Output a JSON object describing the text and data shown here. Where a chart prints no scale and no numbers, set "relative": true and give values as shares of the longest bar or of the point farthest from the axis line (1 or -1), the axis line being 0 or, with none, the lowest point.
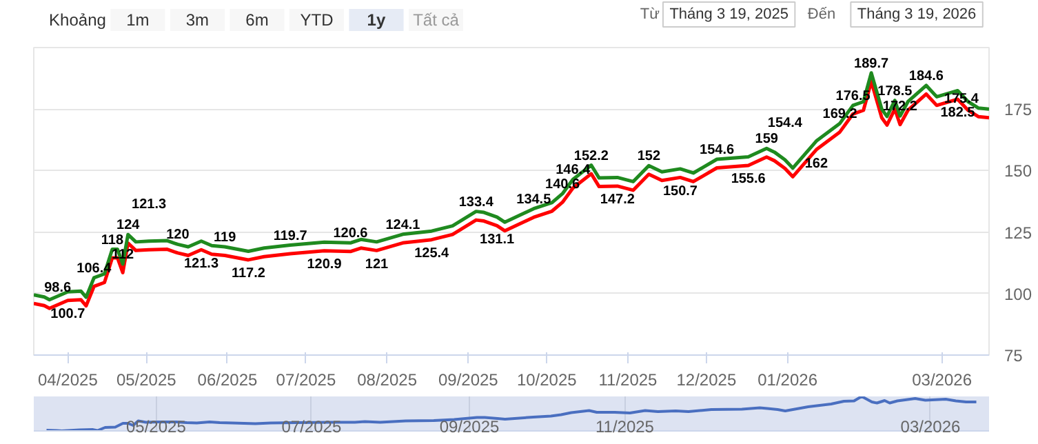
{
  "chart_data": [
    {
      "type": "line",
      "annotations": [
        "Khoảng",
        "1m",
        "3m",
        "6m",
        "YTD",
        "1y",
        "Tất cả",
        "Từ",
        "Tháng 3 19, 2025",
        "Đến",
        "Tháng 3 19, 2026"
      ],
      "x": [
        "2025-03-19",
        "2025-03-23",
        "2025-03-25",
        "2025-04-01",
        "2025-04-06",
        "2025-04-08",
        "2025-04-11",
        "2025-04-15",
        "2025-04-18",
        "2025-04-20",
        "2025-04-22",
        "2025-04-24",
        "2025-04-27",
        "2025-05-02",
        "2025-05-09",
        "2025-05-13",
        "2025-05-17",
        "2025-05-22",
        "2025-05-26",
        "2025-05-31",
        "2025-06-09",
        "2025-06-15",
        "2025-06-25",
        "2025-07-08",
        "2025-07-18",
        "2025-07-22",
        "2025-07-28",
        "2025-08-07",
        "2025-08-18",
        "2025-08-26",
        "2025-09-04",
        "2025-09-07",
        "2025-09-12",
        "2025-09-15",
        "2025-09-26",
        "2025-10-03",
        "2025-10-07",
        "2025-10-11",
        "2025-10-18",
        "2025-10-21",
        "2025-10-28",
        "2025-11-03",
        "2025-11-09",
        "2025-11-14",
        "2025-11-21",
        "2025-11-26",
        "2025-12-05",
        "2025-12-17",
        "2025-12-24",
        "2025-12-27",
        "2025-12-31",
        "2026-01-03",
        "2026-01-12",
        "2026-01-21",
        "2026-01-26",
        "2026-01-30",
        "2026-02-02",
        "2026-02-06",
        "2026-02-08",
        "2026-02-11",
        "2026-02-13",
        "2026-02-16",
        "2026-02-23",
        "2026-02-27",
        "2026-03-07",
        "2026-03-11",
        "2026-03-15",
        "2026-03-19"
      ],
      "series": [
        {
          "color": "#ff0000",
          "values": [
            96,
            95.1,
            94,
            97.2,
            97.5,
            95,
            102.9,
            104.5,
            114.5,
            114.5,
            108.5,
            120.5,
            117.5,
            117.8,
            118,
            116.5,
            115.5,
            117.8,
            116,
            115.5,
            113.7,
            115,
            116.2,
            117.4,
            117.1,
            118.5,
            117.5,
            120.6,
            121.9,
            124,
            129.9,
            129.5,
            127.6,
            125.5,
            131,
            133.5,
            137.1,
            142.9,
            148.7,
            143.5,
            143.7,
            142,
            148.5,
            146,
            147.2,
            145.5,
            151.1,
            152.1,
            155.5,
            154,
            150.9,
            147.5,
            158.5,
            165.7,
            173,
            174.5,
            186.2,
            171.5,
            168.5,
            175,
            168.7,
            174.5,
            181.1,
            176.5,
            179,
            174.5,
            171.9,
            171.5
          ]
        },
        {
          "color": "#1f8a1f",
          "values": [
            99.5,
            98.6,
            97.5,
            100.7,
            101,
            98.5,
            106.4,
            108,
            118,
            118,
            112,
            124,
            121,
            121.3,
            121.5,
            120,
            119,
            121.3,
            119.5,
            119,
            117.2,
            118.5,
            119.7,
            120.9,
            120.6,
            122,
            121,
            124.1,
            125.4,
            127.5,
            133.4,
            133,
            131.1,
            129,
            134.5,
            137,
            140.6,
            146.4,
            152.2,
            147,
            147.2,
            145.5,
            152,
            149.5,
            150.7,
            149,
            154.6,
            155.6,
            159,
            157.5,
            154.4,
            151,
            162,
            169.2,
            176.5,
            178,
            189.7,
            175,
            172,
            178.5,
            172.2,
            178,
            184.6,
            180,
            182.5,
            178,
            175.4,
            175
          ],
          "value_labels": [
            null,
            "98.6",
            null,
            "100.7",
            null,
            null,
            "106.4",
            null,
            "118",
            null,
            "112",
            "124",
            null,
            "121.3",
            null,
            "120",
            null,
            "121.3",
            null,
            "119",
            "117.2",
            null,
            "119.7",
            "120.9",
            "120.6",
            null,
            "121",
            "124.1",
            "125.4",
            null,
            "133.4",
            null,
            "131.1",
            null,
            "134.5",
            null,
            "140.6",
            "146.4",
            "152.2",
            null,
            "147.2",
            null,
            "152",
            null,
            "150.7",
            null,
            "154.6",
            "155.6",
            "159",
            null,
            "154.4",
            null,
            "162",
            "169.2",
            "176.5",
            null,
            "189.7",
            null,
            null,
            "178.5",
            "172.2",
            null,
            "184.6",
            null,
            "182.5",
            null,
            "175.4",
            null
          ]
        }
      ],
      "xlim": [
        "2025-03-19",
        "2026-03-19"
      ],
      "xticks": [
        {
          "value": "2025-04-01",
          "label": "04/2025"
        },
        {
          "value": "2025-05-01",
          "label": "05/2025"
        },
        {
          "value": "2025-06-01",
          "label": "06/2025"
        },
        {
          "value": "2025-07-01",
          "label": "07/2025"
        },
        {
          "value": "2025-08-01",
          "label": "08/2025"
        },
        {
          "value": "2025-09-01",
          "label": "09/2025"
        },
        {
          "value": "2025-10-01",
          "label": "10/2025"
        },
        {
          "value": "2025-11-01",
          "label": "11/2025"
        },
        {
          "value": "2025-12-01",
          "label": "12/2025"
        },
        {
          "value": "2026-01-01",
          "label": "01/2026"
        },
        {
          "value": "2026-03-01",
          "label": "03/2026"
        }
      ],
      "ylim": [
        75,
        200
      ],
      "yticks": [
        75,
        100,
        125,
        150,
        175
      ],
      "grid": "y",
      "marker": "none",
      "line_style": "solid"
    },
    {
      "type": "line",
      "relative": true,
      "x": [
        "2025-03-19",
        "2025-03-23",
        "2025-03-25",
        "2025-04-01",
        "2025-04-06",
        "2025-04-08",
        "2025-04-11",
        "2025-04-15",
        "2025-04-18",
        "2025-04-20",
        "2025-04-22",
        "2025-04-24",
        "2025-04-27",
        "2025-05-02",
        "2025-05-09",
        "2025-05-13",
        "2025-05-17",
        "2025-05-22",
        "2025-05-26",
        "2025-05-31",
        "2025-06-09",
        "2025-06-15",
        "2025-06-25",
        "2025-07-08",
        "2025-07-18",
        "2025-07-22",
        "2025-07-28",
        "2025-08-07",
        "2025-08-18",
        "2025-08-26",
        "2025-09-04",
        "2025-09-07",
        "2025-09-12",
        "2025-09-15",
        "2025-09-26",
        "2025-10-03",
        "2025-10-07",
        "2025-10-11",
        "2025-10-18",
        "2025-10-21",
        "2025-10-28",
        "2025-11-03",
        "2025-11-09",
        "2025-11-14",
        "2025-11-21",
        "2025-11-26",
        "2025-12-05",
        "2025-12-17",
        "2025-12-24",
        "2025-12-27",
        "2025-12-31",
        "2026-01-03",
        "2026-01-12",
        "2026-01-21",
        "2026-01-26",
        "2026-01-30",
        "2026-02-02",
        "2026-02-06",
        "2026-02-08",
        "2026-02-11",
        "2026-02-13",
        "2026-02-16",
        "2026-02-23",
        "2026-02-27",
        "2026-03-07",
        "2026-03-11",
        "2026-03-15",
        "2026-03-19"
      ],
      "series": [
        {
          "color": "#4a6fc0",
          "values": [
            0.02,
            0.01,
            0,
            0.03,
            0.04,
            0.01,
            0.1,
            0.11,
            0.22,
            0.22,
            0.16,
            0.29,
            0.25,
            0.26,
            0.26,
            0.24,
            0.23,
            0.26,
            0.24,
            0.23,
            0.21,
            0.23,
            0.24,
            0.25,
            0.25,
            0.27,
            0.25,
            0.29,
            0.3,
            0.33,
            0.39,
            0.39,
            0.36,
            0.34,
            0.4,
            0.43,
            0.47,
            0.53,
            0.59,
            0.54,
            0.54,
            0.52,
            0.59,
            0.56,
            0.58,
            0.56,
            0.62,
            0.63,
            0.67,
            0.65,
            0.62,
            0.58,
            0.7,
            0.78,
            0.86,
            0.87,
            1,
            0.84,
            0.81,
            0.88,
            0.81,
            0.87,
            0.94,
            0.89,
            0.92,
            0.87,
            0.84,
            0.84
          ]
        }
      ],
      "xlim": [
        "2025-03-14",
        "2026-03-24"
      ],
      "xticks": [
        {
          "value": "2025-05-01",
          "label": "05/2025"
        },
        {
          "value": "2025-07-01",
          "label": "07/2025"
        },
        {
          "value": "2025-09-01",
          "label": "09/2025"
        },
        {
          "value": "2025-11-01",
          "label": "11/2025"
        },
        {
          "value": "2026-03-01",
          "label": "03/2026"
        }
      ],
      "tick_labels": "x",
      "grid": "x"
    }
  ]
}
